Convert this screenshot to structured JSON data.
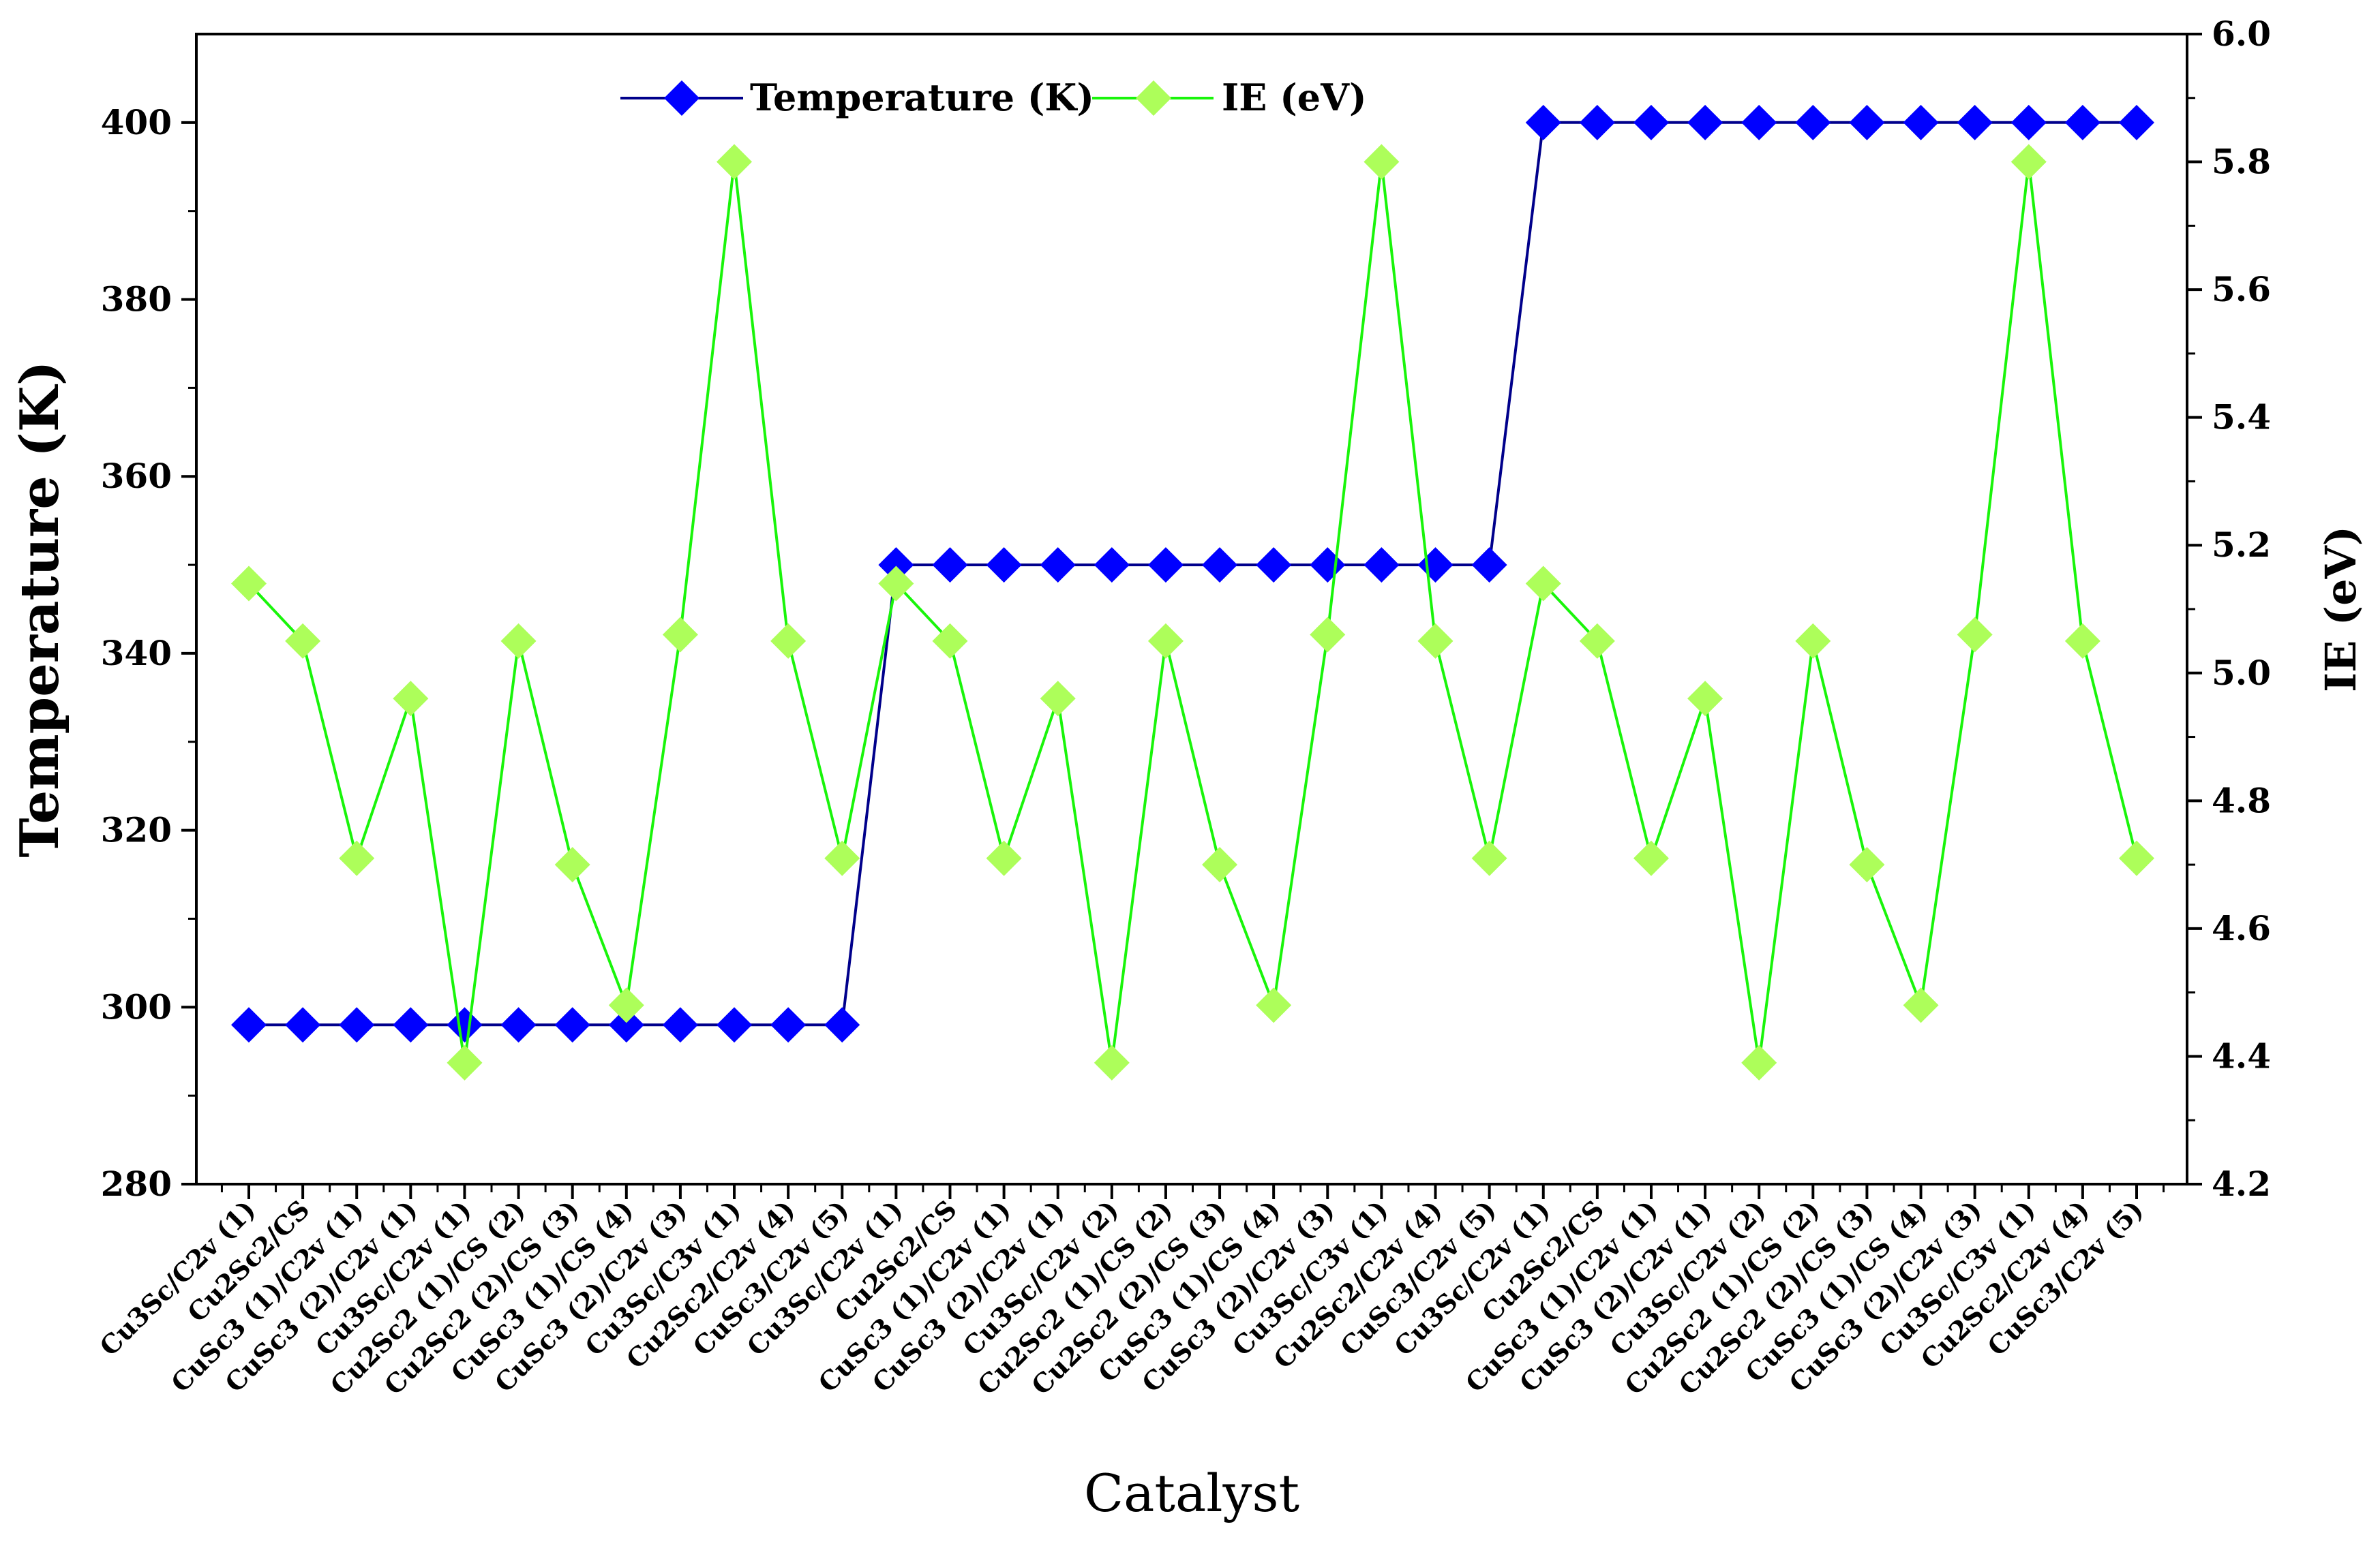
{
  "chart_data": {
    "type": "line",
    "xlabel": "Catalyst",
    "ylabel": "Temperature (K)",
    "y2label": "IE (eV)",
    "ylim": [
      280,
      410
    ],
    "yticks": [
      280,
      300,
      320,
      340,
      360,
      380,
      400
    ],
    "y2lim": [
      4.2,
      6.0
    ],
    "y2ticks": [
      4.2,
      4.4,
      4.6,
      4.8,
      5.0,
      5.2,
      5.4,
      5.6,
      5.8,
      6.0
    ],
    "legend_position": "top-center",
    "categories": [
      "Cu3Sc/C2v (1)",
      "Cu2Sc2/CS",
      "CuSc3 (1)/C2v (1)",
      "CuSc3 (2)/C2v (1)",
      "Cu3Sc/C2v (1)",
      "Cu2Sc2 (1)/CS (2)",
      "Cu2Sc2 (2)/CS (3)",
      "CuSc3 (1)/CS (4)",
      "CuSc3 (2)/C2v (3)",
      "Cu3Sc/C3v (1)",
      "Cu2Sc2/C2v (4)",
      "CuSc3/C2v (5)",
      "Cu3Sc/C2v (1)",
      "Cu2Sc2/CS",
      "CuSc3 (1)/C2v (1)",
      "CuSc3 (2)/C2v (1)",
      "Cu3Sc/C2v (2)",
      "Cu2Sc2 (1)/CS (2)",
      "Cu2Sc2 (2)/CS (3)",
      "CuSc3 (1)/CS (4)",
      "CuSc3 (2)/C2v (3)",
      "Cu3Sc/C3v (1)",
      "Cu2Sc2/C2v (4)",
      "CuSc3/C2v (5)",
      "Cu3Sc/C2v (1)",
      "Cu2Sc2/CS",
      "CuSc3 (1)/C2v (1)",
      "CuSc3 (2)/C2v (1)",
      "Cu3Sc/C2v (2)",
      "Cu2Sc2 (1)/CS (2)",
      "Cu2Sc2 (2)/CS (3)",
      "CuSc3 (1)/CS (4)",
      "CuSc3 (2)/C2v (3)",
      "Cu3Sc/C3v (1)",
      "Cu2Sc2/C2v (4)",
      "CuSc3/C2v (5)"
    ],
    "series": [
      {
        "name": "Temperature (K)",
        "axis": "left",
        "color": "#0000ff",
        "line_color": "#00008b",
        "values": [
          298,
          298,
          298,
          298,
          298,
          298,
          298,
          298,
          298,
          298,
          298,
          298,
          350,
          350,
          350,
          350,
          350,
          350,
          350,
          350,
          350,
          350,
          350,
          350,
          400,
          400,
          400,
          400,
          400,
          400,
          400,
          400,
          400,
          400,
          400,
          400
        ]
      },
      {
        "name": "IE (eV)",
        "axis": "right",
        "color": "#adfe5a",
        "line_color": "#19f50a",
        "values": [
          5.14,
          5.05,
          4.71,
          4.96,
          4.39,
          5.05,
          4.7,
          4.48,
          5.06,
          5.8,
          5.05,
          4.71,
          5.14,
          5.05,
          4.71,
          4.96,
          4.39,
          5.05,
          4.7,
          4.48,
          5.06,
          5.8,
          5.05,
          4.71,
          5.14,
          5.05,
          4.71,
          4.96,
          4.39,
          5.05,
          4.7,
          4.48,
          5.06,
          5.8,
          5.05,
          4.71
        ]
      }
    ]
  }
}
